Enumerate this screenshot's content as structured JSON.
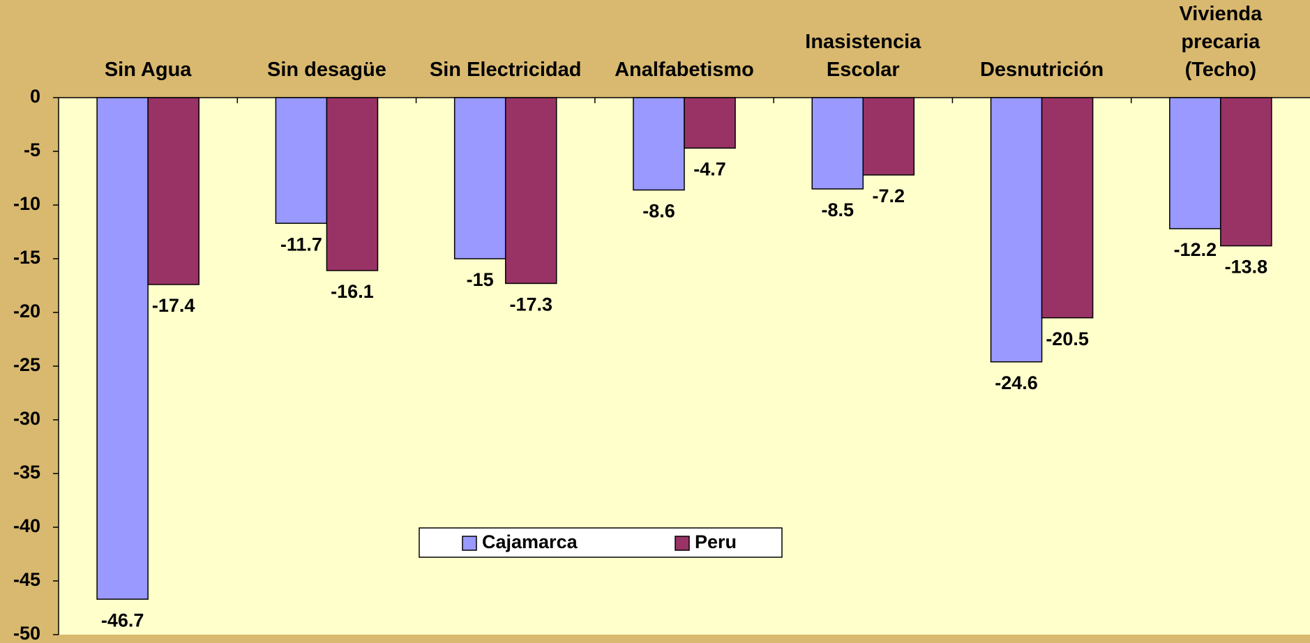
{
  "chart_data": {
    "type": "bar",
    "categories": [
      "Sin Agua",
      "Sin desagüe",
      "Sin Electricidad",
      "Analfabetismo",
      "Inasistencia\nEscolar",
      "Desnutrición",
      "Vivienda\nprecaria\n(Techo)"
    ],
    "series": [
      {
        "name": "Cajamarca",
        "color": "#9999ff",
        "values": [
          -46.7,
          -11.7,
          -15,
          -8.6,
          -8.5,
          -24.6,
          -12.2
        ]
      },
      {
        "name": "Peru",
        "color": "#993366",
        "values": [
          -17.4,
          -16.1,
          -17.3,
          -4.7,
          -7.2,
          -20.5,
          -13.8
        ]
      }
    ],
    "ylim": [
      -50,
      0
    ],
    "yticks": [
      0,
      -5,
      -10,
      -15,
      -20,
      -25,
      -30,
      -35,
      -40,
      -45,
      -50
    ],
    "grid": false,
    "legend": "bottom center"
  }
}
